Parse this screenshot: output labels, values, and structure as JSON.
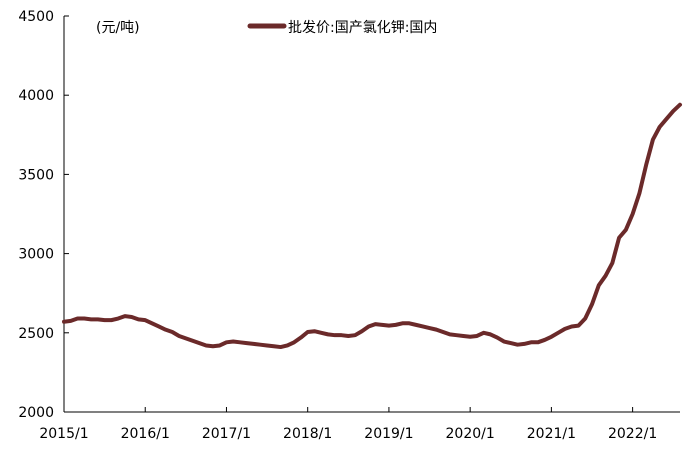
{
  "chart_data": {
    "type": "line",
    "unit_label": "(元/吨)",
    "legend_position": "top-center",
    "grid": false,
    "ylim": [
      2000,
      4500
    ],
    "yticks": [
      2000,
      2500,
      3000,
      3500,
      4000,
      4500
    ],
    "xlim": [
      "2015-01",
      "2022-08"
    ],
    "xticks": [
      "2015/1",
      "2016/1",
      "2017/1",
      "2018/1",
      "2019/1",
      "2020/1",
      "2021/1",
      "2022/1"
    ],
    "series": [
      {
        "name": "批发价:国产氯化钾:国内",
        "color": "#6B2A2A",
        "points": [
          [
            "2015-01",
            2570
          ],
          [
            "2015-02",
            2575
          ],
          [
            "2015-03",
            2590
          ],
          [
            "2015-04",
            2590
          ],
          [
            "2015-05",
            2585
          ],
          [
            "2015-06",
            2585
          ],
          [
            "2015-07",
            2580
          ],
          [
            "2015-08",
            2580
          ],
          [
            "2015-09",
            2590
          ],
          [
            "2015-10",
            2605
          ],
          [
            "2015-11",
            2600
          ],
          [
            "2015-12",
            2585
          ],
          [
            "2016-01",
            2580
          ],
          [
            "2016-02",
            2560
          ],
          [
            "2016-03",
            2540
          ],
          [
            "2016-04",
            2520
          ],
          [
            "2016-05",
            2505
          ],
          [
            "2016-06",
            2480
          ],
          [
            "2016-07",
            2465
          ],
          [
            "2016-08",
            2450
          ],
          [
            "2016-09",
            2435
          ],
          [
            "2016-10",
            2420
          ],
          [
            "2016-11",
            2415
          ],
          [
            "2016-12",
            2420
          ],
          [
            "2017-01",
            2440
          ],
          [
            "2017-02",
            2445
          ],
          [
            "2017-03",
            2440
          ],
          [
            "2017-04",
            2435
          ],
          [
            "2017-05",
            2430
          ],
          [
            "2017-06",
            2425
          ],
          [
            "2017-07",
            2420
          ],
          [
            "2017-08",
            2415
          ],
          [
            "2017-09",
            2410
          ],
          [
            "2017-10",
            2420
          ],
          [
            "2017-11",
            2440
          ],
          [
            "2017-12",
            2470
          ],
          [
            "2018-01",
            2505
          ],
          [
            "2018-02",
            2510
          ],
          [
            "2018-03",
            2500
          ],
          [
            "2018-04",
            2490
          ],
          [
            "2018-05",
            2485
          ],
          [
            "2018-06",
            2485
          ],
          [
            "2018-07",
            2480
          ],
          [
            "2018-08",
            2485
          ],
          [
            "2018-09",
            2510
          ],
          [
            "2018-10",
            2540
          ],
          [
            "2018-11",
            2555
          ],
          [
            "2018-12",
            2550
          ],
          [
            "2019-01",
            2545
          ],
          [
            "2019-02",
            2550
          ],
          [
            "2019-03",
            2560
          ],
          [
            "2019-04",
            2560
          ],
          [
            "2019-05",
            2550
          ],
          [
            "2019-06",
            2540
          ],
          [
            "2019-07",
            2530
          ],
          [
            "2019-08",
            2520
          ],
          [
            "2019-09",
            2505
          ],
          [
            "2019-10",
            2490
          ],
          [
            "2019-11",
            2485
          ],
          [
            "2019-12",
            2480
          ],
          [
            "2020-01",
            2475
          ],
          [
            "2020-02",
            2480
          ],
          [
            "2020-03",
            2500
          ],
          [
            "2020-04",
            2490
          ],
          [
            "2020-05",
            2470
          ],
          [
            "2020-06",
            2445
          ],
          [
            "2020-07",
            2435
          ],
          [
            "2020-08",
            2425
          ],
          [
            "2020-09",
            2430
          ],
          [
            "2020-10",
            2440
          ],
          [
            "2020-11",
            2440
          ],
          [
            "2020-12",
            2455
          ],
          [
            "2021-01",
            2475
          ],
          [
            "2021-02",
            2500
          ],
          [
            "2021-03",
            2525
          ],
          [
            "2021-04",
            2540
          ],
          [
            "2021-05",
            2545
          ],
          [
            "2021-06",
            2590
          ],
          [
            "2021-07",
            2680
          ],
          [
            "2021-08",
            2800
          ],
          [
            "2021-09",
            2860
          ],
          [
            "2021-10",
            2940
          ],
          [
            "2021-11",
            3100
          ],
          [
            "2021-12",
            3150
          ],
          [
            "2022-01",
            3250
          ],
          [
            "2022-02",
            3380
          ],
          [
            "2022-03",
            3560
          ],
          [
            "2022-04",
            3720
          ],
          [
            "2022-05",
            3800
          ],
          [
            "2022-06",
            3850
          ],
          [
            "2022-07",
            3900
          ],
          [
            "2022-08",
            3940
          ]
        ]
      }
    ]
  }
}
